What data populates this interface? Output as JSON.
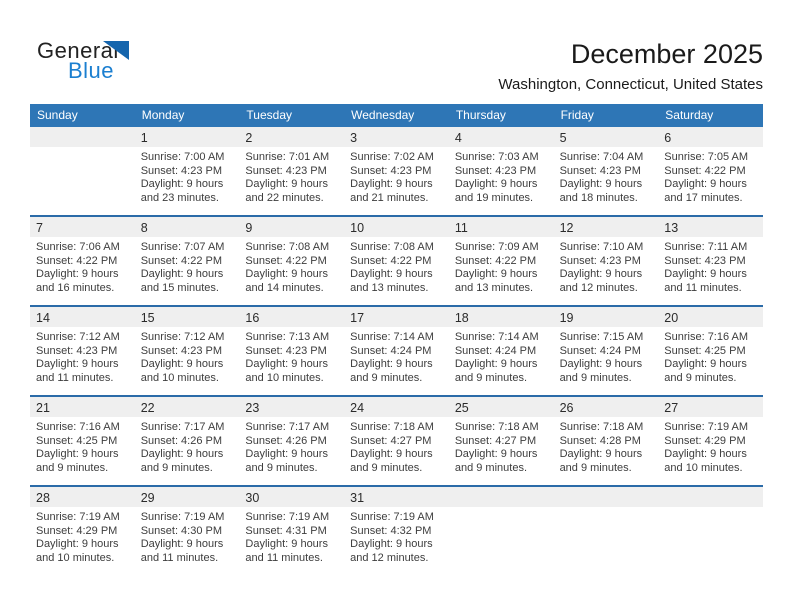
{
  "logo": {
    "part1": "General",
    "part2": "Blue",
    "triangle_icon": "logo-triangle-icon"
  },
  "header": {
    "title": "December 2025",
    "subtitle": "Washington, Connecticut, United States"
  },
  "colors": {
    "header_bg": "#2e76b6",
    "week_divider": "#2b6ba8",
    "daynum_strip_bg": "#efefef",
    "logo_blue_text": "#1b7fd0",
    "logo_triangle": "#1565ad",
    "body_text": "#3d3d3d"
  },
  "weekdays": [
    "Sunday",
    "Monday",
    "Tuesday",
    "Wednesday",
    "Thursday",
    "Friday",
    "Saturday"
  ],
  "weeks": [
    [
      null,
      {
        "day": "1",
        "lines": [
          "Sunrise: 7:00 AM",
          "Sunset: 4:23 PM",
          "Daylight: 9 hours",
          "and 23 minutes."
        ]
      },
      {
        "day": "2",
        "lines": [
          "Sunrise: 7:01 AM",
          "Sunset: 4:23 PM",
          "Daylight: 9 hours",
          "and 22 minutes."
        ]
      },
      {
        "day": "3",
        "lines": [
          "Sunrise: 7:02 AM",
          "Sunset: 4:23 PM",
          "Daylight: 9 hours",
          "and 21 minutes."
        ]
      },
      {
        "day": "4",
        "lines": [
          "Sunrise: 7:03 AM",
          "Sunset: 4:23 PM",
          "Daylight: 9 hours",
          "and 19 minutes."
        ]
      },
      {
        "day": "5",
        "lines": [
          "Sunrise: 7:04 AM",
          "Sunset: 4:23 PM",
          "Daylight: 9 hours",
          "and 18 minutes."
        ]
      },
      {
        "day": "6",
        "lines": [
          "Sunrise: 7:05 AM",
          "Sunset: 4:22 PM",
          "Daylight: 9 hours",
          "and 17 minutes."
        ]
      }
    ],
    [
      {
        "day": "7",
        "lines": [
          "Sunrise: 7:06 AM",
          "Sunset: 4:22 PM",
          "Daylight: 9 hours",
          "and 16 minutes."
        ]
      },
      {
        "day": "8",
        "lines": [
          "Sunrise: 7:07 AM",
          "Sunset: 4:22 PM",
          "Daylight: 9 hours",
          "and 15 minutes."
        ]
      },
      {
        "day": "9",
        "lines": [
          "Sunrise: 7:08 AM",
          "Sunset: 4:22 PM",
          "Daylight: 9 hours",
          "and 14 minutes."
        ]
      },
      {
        "day": "10",
        "lines": [
          "Sunrise: 7:08 AM",
          "Sunset: 4:22 PM",
          "Daylight: 9 hours",
          "and 13 minutes."
        ]
      },
      {
        "day": "11",
        "lines": [
          "Sunrise: 7:09 AM",
          "Sunset: 4:22 PM",
          "Daylight: 9 hours",
          "and 13 minutes."
        ]
      },
      {
        "day": "12",
        "lines": [
          "Sunrise: 7:10 AM",
          "Sunset: 4:23 PM",
          "Daylight: 9 hours",
          "and 12 minutes."
        ]
      },
      {
        "day": "13",
        "lines": [
          "Sunrise: 7:11 AM",
          "Sunset: 4:23 PM",
          "Daylight: 9 hours",
          "and 11 minutes."
        ]
      }
    ],
    [
      {
        "day": "14",
        "lines": [
          "Sunrise: 7:12 AM",
          "Sunset: 4:23 PM",
          "Daylight: 9 hours",
          "and 11 minutes."
        ]
      },
      {
        "day": "15",
        "lines": [
          "Sunrise: 7:12 AM",
          "Sunset: 4:23 PM",
          "Daylight: 9 hours",
          "and 10 minutes."
        ]
      },
      {
        "day": "16",
        "lines": [
          "Sunrise: 7:13 AM",
          "Sunset: 4:23 PM",
          "Daylight: 9 hours",
          "and 10 minutes."
        ]
      },
      {
        "day": "17",
        "lines": [
          "Sunrise: 7:14 AM",
          "Sunset: 4:24 PM",
          "Daylight: 9 hours",
          "and 9 minutes."
        ]
      },
      {
        "day": "18",
        "lines": [
          "Sunrise: 7:14 AM",
          "Sunset: 4:24 PM",
          "Daylight: 9 hours",
          "and 9 minutes."
        ]
      },
      {
        "day": "19",
        "lines": [
          "Sunrise: 7:15 AM",
          "Sunset: 4:24 PM",
          "Daylight: 9 hours",
          "and 9 minutes."
        ]
      },
      {
        "day": "20",
        "lines": [
          "Sunrise: 7:16 AM",
          "Sunset: 4:25 PM",
          "Daylight: 9 hours",
          "and 9 minutes."
        ]
      }
    ],
    [
      {
        "day": "21",
        "lines": [
          "Sunrise: 7:16 AM",
          "Sunset: 4:25 PM",
          "Daylight: 9 hours",
          "and 9 minutes."
        ]
      },
      {
        "day": "22",
        "lines": [
          "Sunrise: 7:17 AM",
          "Sunset: 4:26 PM",
          "Daylight: 9 hours",
          "and 9 minutes."
        ]
      },
      {
        "day": "23",
        "lines": [
          "Sunrise: 7:17 AM",
          "Sunset: 4:26 PM",
          "Daylight: 9 hours",
          "and 9 minutes."
        ]
      },
      {
        "day": "24",
        "lines": [
          "Sunrise: 7:18 AM",
          "Sunset: 4:27 PM",
          "Daylight: 9 hours",
          "and 9 minutes."
        ]
      },
      {
        "day": "25",
        "lines": [
          "Sunrise: 7:18 AM",
          "Sunset: 4:27 PM",
          "Daylight: 9 hours",
          "and 9 minutes."
        ]
      },
      {
        "day": "26",
        "lines": [
          "Sunrise: 7:18 AM",
          "Sunset: 4:28 PM",
          "Daylight: 9 hours",
          "and 9 minutes."
        ]
      },
      {
        "day": "27",
        "lines": [
          "Sunrise: 7:19 AM",
          "Sunset: 4:29 PM",
          "Daylight: 9 hours",
          "and 10 minutes."
        ]
      }
    ],
    [
      {
        "day": "28",
        "lines": [
          "Sunrise: 7:19 AM",
          "Sunset: 4:29 PM",
          "Daylight: 9 hours",
          "and 10 minutes."
        ]
      },
      {
        "day": "29",
        "lines": [
          "Sunrise: 7:19 AM",
          "Sunset: 4:30 PM",
          "Daylight: 9 hours",
          "and 11 minutes."
        ]
      },
      {
        "day": "30",
        "lines": [
          "Sunrise: 7:19 AM",
          "Sunset: 4:31 PM",
          "Daylight: 9 hours",
          "and 11 minutes."
        ]
      },
      {
        "day": "31",
        "lines": [
          "Sunrise: 7:19 AM",
          "Sunset: 4:32 PM",
          "Daylight: 9 hours",
          "and 12 minutes."
        ]
      },
      null,
      null,
      null
    ]
  ]
}
